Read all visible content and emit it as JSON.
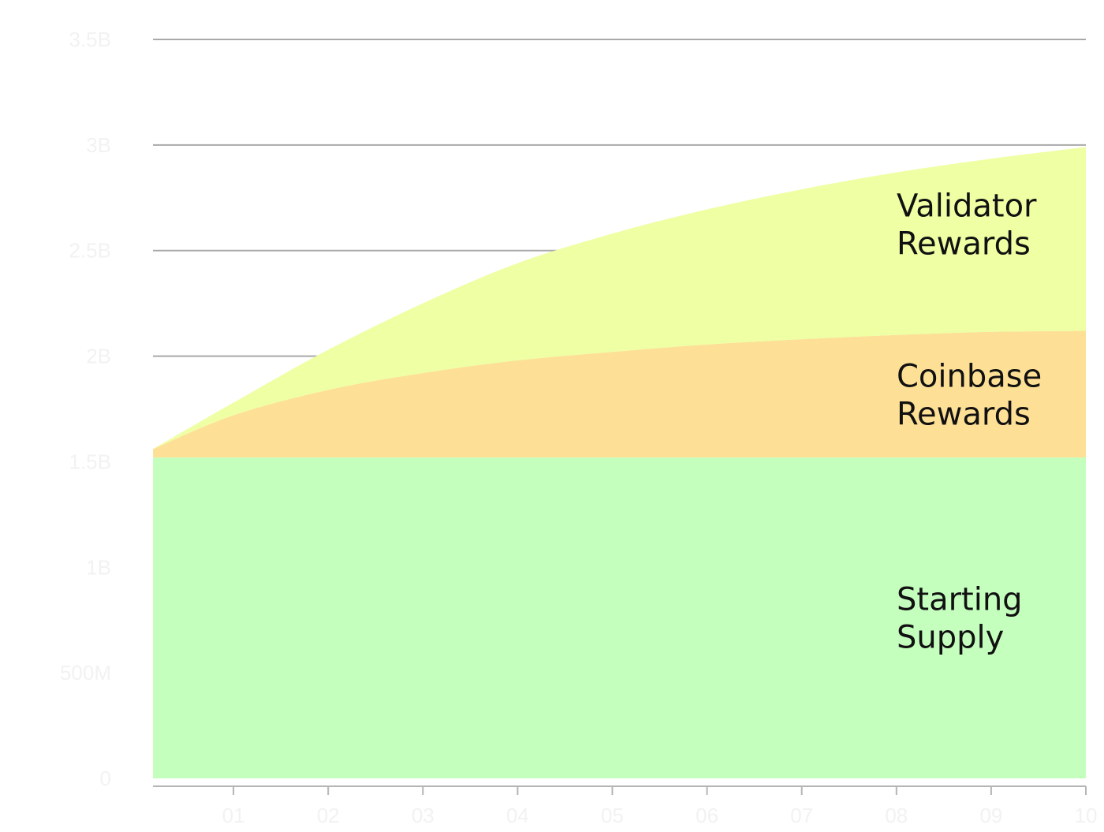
{
  "chart_data": {
    "type": "area",
    "stacked": true,
    "x_ticks": [
      "01",
      "02",
      "03",
      "04",
      "05",
      "06",
      "07",
      "08",
      "09",
      "10"
    ],
    "y_ticks": [
      {
        "value": 0,
        "label": "0"
      },
      {
        "value": 500000000,
        "label": "500M"
      },
      {
        "value": 1000000000,
        "label": "1B"
      },
      {
        "value": 1500000000,
        "label": "1.5B"
      },
      {
        "value": 2000000000,
        "label": "2B"
      },
      {
        "value": 2500000000,
        "label": "2.5B"
      },
      {
        "value": 3000000000,
        "label": "3B"
      },
      {
        "value": 3500000000,
        "label": "3.5B"
      }
    ],
    "xlim": [
      0.15,
      10
    ],
    "ylim": [
      0,
      3500000000
    ],
    "x": [
      0.15,
      1,
      2,
      3,
      4,
      5,
      6,
      7,
      8,
      9,
      10
    ],
    "grid": true,
    "series": [
      {
        "name": "Starting Supply",
        "label_lines": [
          "Starting",
          "Supply"
        ],
        "color": "#c4ffbe",
        "values": [
          1520000000,
          1520000000,
          1520000000,
          1520000000,
          1520000000,
          1520000000,
          1520000000,
          1520000000,
          1520000000,
          1520000000,
          1520000000
        ]
      },
      {
        "name": "Coinbase Rewards",
        "label_lines": [
          "Coinbase",
          "Rewards"
        ],
        "color": "#fde096",
        "values": [
          40000000,
          200000000,
          320000000,
          400000000,
          460000000,
          500000000,
          535000000,
          560000000,
          580000000,
          595000000,
          600000000
        ]
      },
      {
        "name": "Validator Rewards",
        "label_lines": [
          "Validator",
          "Rewards"
        ],
        "color": "#eeffa4",
        "values": [
          0,
          60000000,
          190000000,
          330000000,
          460000000,
          560000000,
          640000000,
          710000000,
          770000000,
          820000000,
          870000000
        ]
      }
    ]
  }
}
